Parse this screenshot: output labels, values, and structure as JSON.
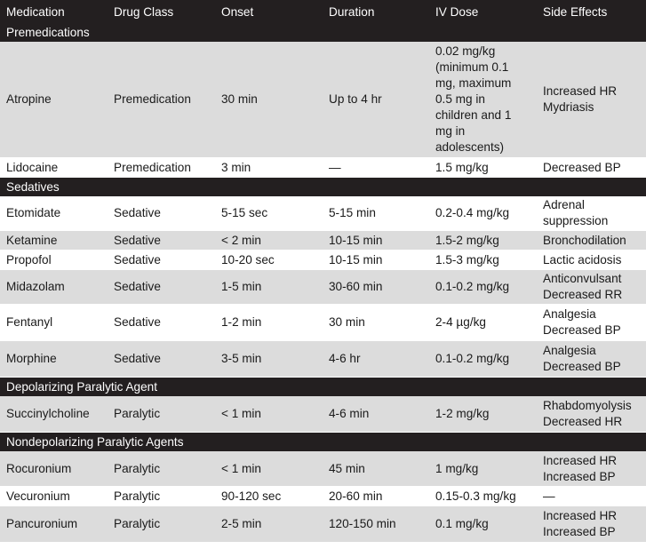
{
  "columns": [
    "Medication",
    "Drug Class",
    "Onset",
    "Duration",
    "IV Dose",
    "Side Effects"
  ],
  "sections": [
    {
      "title": "Premedications",
      "rows": [
        {
          "medication": "Atropine",
          "drug_class": "Premedication",
          "onset": "30 min",
          "duration": "Up to 4 hr",
          "iv_dose": "0.02 mg/kg (minimum 0.1 mg, maximum 0.5 mg in children and 1 mg in adolescents)",
          "side_effects": [
            "Increased HR",
            "Mydriasis"
          ],
          "shade": true
        },
        {
          "medication": "Lidocaine",
          "drug_class": "Premedication",
          "onset": "3 min",
          "duration": "—",
          "iv_dose": "1.5 mg/kg",
          "side_effects": [
            "Decreased BP"
          ],
          "shade": false
        }
      ]
    },
    {
      "title": "Sedatives",
      "rows": [
        {
          "medication": "Etomidate",
          "drug_class": "Sedative",
          "onset": "5-15 sec",
          "duration": "5-15 min",
          "iv_dose": "0.2-0.4 mg/kg",
          "side_effects": [
            "Adrenal suppression"
          ],
          "shade": false
        },
        {
          "medication": "Ketamine",
          "drug_class": "Sedative",
          "onset": "< 2 min",
          "duration": "10-15 min",
          "iv_dose": "1.5-2 mg/kg",
          "side_effects": [
            "Bronchodilation"
          ],
          "shade": true
        },
        {
          "medication": "Propofol",
          "drug_class": "Sedative",
          "onset": "10-20 sec",
          "duration": "10-15 min",
          "iv_dose": "1.5-3 mg/kg",
          "side_effects": [
            "Lactic acidosis"
          ],
          "shade": false
        },
        {
          "medication": "Midazolam",
          "drug_class": "Sedative",
          "onset": "1-5 min",
          "duration": "30-60 min",
          "iv_dose": "0.1-0.2 mg/kg",
          "side_effects": [
            "Anticonvulsant",
            "Decreased RR"
          ],
          "shade": true
        },
        {
          "medication": "Fentanyl",
          "drug_class": "Sedative",
          "onset": "1-2 min",
          "duration": "30 min",
          "iv_dose": "2-4 µg/kg",
          "side_effects": [
            "Analgesia",
            "Decreased BP"
          ],
          "shade": false
        },
        {
          "medication": "Morphine",
          "drug_class": "Sedative",
          "onset": "3-5 min",
          "duration": "4-6 hr",
          "iv_dose": "0.1-0.2 mg/kg",
          "side_effects": [
            "Analgesia",
            "Decreased BP"
          ],
          "shade": true
        }
      ]
    },
    {
      "title": "Depolarizing Paralytic Agent",
      "rows": [
        {
          "medication": "Succinylcholine",
          "drug_class": "Paralytic",
          "onset": "< 1 min",
          "duration": "4-6 min",
          "iv_dose": "1-2 mg/kg",
          "side_effects": [
            "Rhabdomyolysis",
            "Decreased HR"
          ],
          "shade": true
        }
      ]
    },
    {
      "title": "Nondepolarizing Paralytic Agents",
      "rows": [
        {
          "medication": "Rocuronium",
          "drug_class": "Paralytic",
          "onset": "< 1 min",
          "duration": "45 min",
          "iv_dose": "1 mg/kg",
          "side_effects": [
            "Increased HR",
            "Increased BP"
          ],
          "shade": true
        },
        {
          "medication": "Vecuronium",
          "drug_class": "Paralytic",
          "onset": "90-120 sec",
          "duration": "20-60 min",
          "iv_dose": "0.15-0.3 mg/kg",
          "side_effects": [
            "—"
          ],
          "shade": false
        },
        {
          "medication": "Pancuronium",
          "drug_class": "Paralytic",
          "onset": "2-5 min",
          "duration": "120-150 min",
          "iv_dose": "0.1 mg/kg",
          "side_effects": [
            "Increased HR",
            "Increased BP"
          ],
          "shade": true
        }
      ]
    }
  ]
}
